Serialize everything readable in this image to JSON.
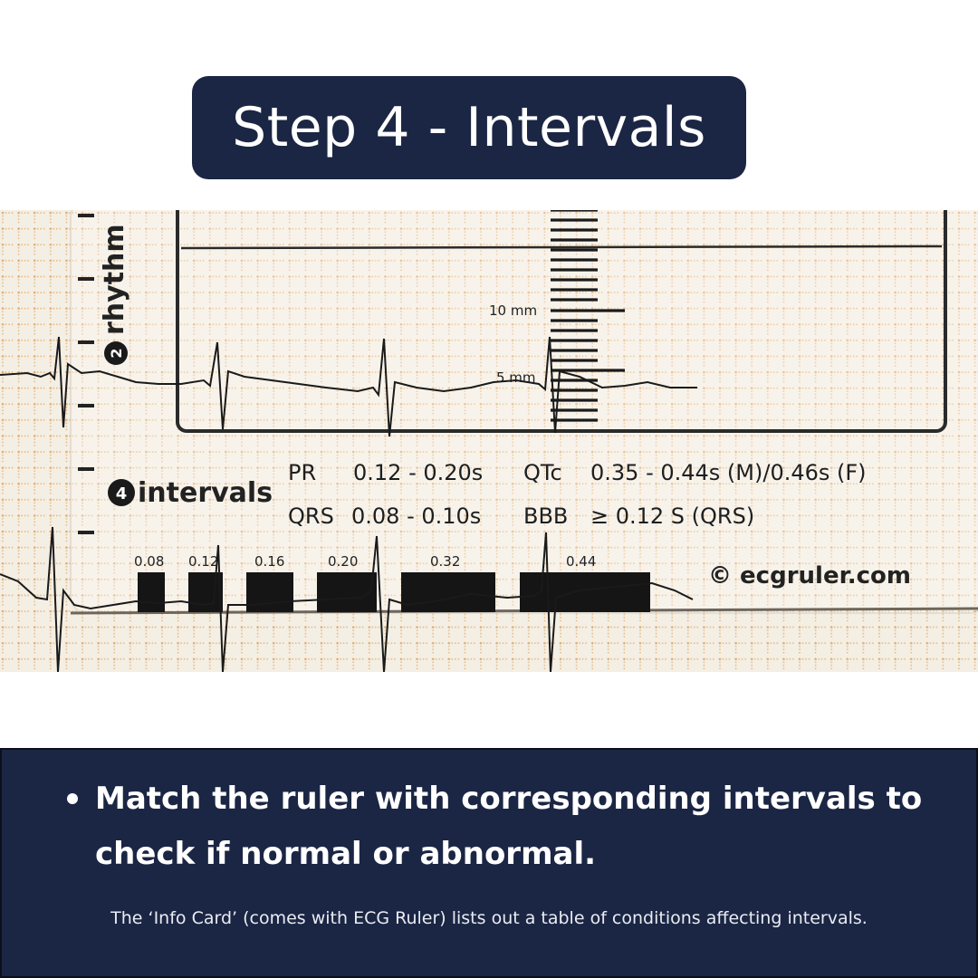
{
  "title": "Step 4 - Intervals",
  "ruler": {
    "section_rhythm_number": "2",
    "section_rhythm_label": "rhythm",
    "scale_10mm": "10 mm",
    "scale_5mm": "5 mm",
    "section_intervals_number": "4",
    "section_intervals_label": "intervals",
    "pr_label": "PR",
    "pr_value": "0.12 - 0.20s",
    "qtc_label": "QTc",
    "qtc_value": "0.35 - 0.44s (M)/0.46s (F)",
    "qrs_label": "QRS",
    "qrs_value": "0.08 - 0.10s",
    "bbb_label": "BBB",
    "bbb_value": "≥ 0.12 S (QRS)",
    "block_labels": [
      "0.08",
      "0.12",
      "0.16",
      "0.20",
      "0.32",
      "0.44"
    ],
    "copyright": "© ecgruler.com"
  },
  "instruction": "Match the ruler with corresponding intervals to check if normal or abnormal.",
  "footnote": "The ‘Info Card’ (comes with ECG Ruler) lists out a table of conditions affecting intervals.",
  "colors": {
    "navy": "#1b2644",
    "grid_dot": "#e0a05c",
    "paper": "#f4efe4",
    "ink": "#151515"
  }
}
